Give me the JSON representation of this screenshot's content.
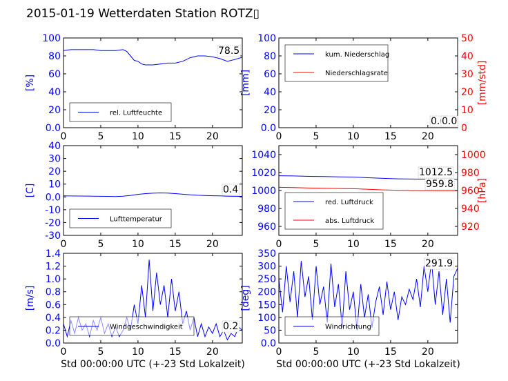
{
  "title": "2015-01-19 Wetterdaten Station ROTZ▯",
  "chart_data": [
    {
      "type": "line",
      "id": "humidity",
      "xlim": [
        0,
        24
      ],
      "xticks": [
        0,
        5,
        10,
        15,
        20
      ],
      "ylim": [
        0,
        100
      ],
      "yticks": [
        0,
        20,
        40,
        60,
        80,
        100
      ],
      "ylabel": "[%]",
      "xlabel": "",
      "legend": "lower-left",
      "series": [
        {
          "name": "rel. Luftfeuchte",
          "color": "#0000ff",
          "x": [
            0,
            1,
            2,
            3,
            4,
            5,
            6,
            7,
            8,
            8.5,
            9,
            9.5,
            10,
            10.5,
            11,
            12,
            13,
            14,
            15,
            16,
            17,
            18,
            19,
            20,
            21,
            22,
            23,
            24
          ],
          "y": [
            86,
            87,
            87,
            87,
            87,
            86,
            86,
            86,
            87,
            85,
            80,
            75,
            74,
            71,
            70,
            70,
            71,
            72,
            72,
            74,
            78,
            80,
            80,
            79,
            77,
            74,
            76,
            78.5
          ]
        }
      ],
      "value_labels": [
        {
          "text": "78.5",
          "color": "#000000"
        }
      ]
    },
    {
      "type": "line",
      "id": "precipitation",
      "xlim": [
        0,
        24
      ],
      "xticks": [
        0,
        5,
        10,
        15,
        20
      ],
      "ylim": [
        0,
        100
      ],
      "yticks": [
        0,
        20,
        40,
        60,
        80,
        100
      ],
      "ylabel": "[mm]",
      "y2lim": [
        0,
        50
      ],
      "y2ticks": [
        0,
        10,
        20,
        30,
        40,
        50
      ],
      "y2label": "[mm/std]",
      "xlabel": "",
      "legend": "upper-left",
      "series": [
        {
          "name": "kum. Niederschlag",
          "color": "#0000ff",
          "axis": "left",
          "x": [
            0,
            24
          ],
          "y": [
            0,
            0
          ]
        },
        {
          "name": "Niederschlagsrate",
          "color": "#ff0000",
          "axis": "right",
          "x": [
            0,
            24
          ],
          "y": [
            0,
            0
          ]
        }
      ],
      "value_labels": [
        {
          "text": "0.0",
          "color": "#000000"
        },
        {
          "text": "0.0",
          "color": "#000000"
        }
      ]
    },
    {
      "type": "line",
      "id": "temperature",
      "xlim": [
        0,
        24
      ],
      "xticks": [
        0,
        5,
        10,
        15,
        20
      ],
      "ylim": [
        -30,
        40
      ],
      "yticks": [
        -30,
        -20,
        -10,
        0,
        10,
        20,
        30,
        40
      ],
      "ylabel": "[C]",
      "xlabel": "",
      "legend": "lower-left",
      "series": [
        {
          "name": "Lufttemperatur",
          "color": "#0000ff",
          "x": [
            0,
            2,
            4,
            6,
            7,
            8,
            9,
            10,
            11,
            12,
            13,
            14,
            15,
            16,
            17,
            18,
            19,
            20,
            21,
            22,
            23,
            24
          ],
          "y": [
            0.8,
            0.7,
            0.6,
            0.4,
            0.3,
            0.6,
            1.2,
            2.0,
            2.6,
            2.9,
            3.1,
            3.0,
            2.6,
            2.1,
            1.6,
            1.3,
            1.1,
            0.9,
            0.8,
            0.6,
            0.5,
            0.4
          ]
        }
      ],
      "value_labels": [
        {
          "text": "0.4",
          "color": "#000000"
        }
      ]
    },
    {
      "type": "line",
      "id": "pressure",
      "xlim": [
        0,
        24
      ],
      "xticks": [
        0,
        5,
        10,
        15,
        20
      ],
      "ylim": [
        950,
        1050
      ],
      "yticks": [
        960,
        980,
        1000,
        1020,
        1040
      ],
      "ylabel": "",
      "y2lim": [
        910,
        1010
      ],
      "y2ticks": [
        920,
        940,
        960,
        980,
        1000
      ],
      "y2label": "[hPa]",
      "xlabel": "",
      "legend": "lower-left",
      "series": [
        {
          "name": "red. Luftdruck",
          "color": "#0000ff",
          "axis": "left",
          "x": [
            0,
            2,
            4,
            6,
            8,
            10,
            12,
            14,
            16,
            18,
            20,
            22,
            24
          ],
          "y": [
            1016.5,
            1016.2,
            1015.8,
            1015.5,
            1015.2,
            1015.0,
            1014.2,
            1013.5,
            1013.0,
            1012.8,
            1012.6,
            1012.5,
            1012.5
          ]
        },
        {
          "name": "abs. Luftdruck",
          "color": "#ff0000",
          "axis": "right",
          "x": [
            0,
            2,
            4,
            6,
            8,
            10,
            12,
            14,
            16,
            18,
            20,
            22,
            24
          ],
          "y": [
            963.5,
            963.2,
            962.8,
            962.5,
            962.2,
            962.0,
            961.3,
            960.7,
            960.3,
            960.0,
            959.9,
            959.8,
            959.8
          ]
        }
      ],
      "value_labels": [
        {
          "text": "1012.5",
          "color": "#000000"
        },
        {
          "text": "959.8",
          "color": "#000000"
        }
      ]
    },
    {
      "type": "line",
      "id": "windspeed",
      "xlim": [
        0,
        24
      ],
      "xticks": [
        0,
        5,
        10,
        15,
        20
      ],
      "ylim": [
        0,
        1.4
      ],
      "yticks": [
        0.0,
        0.2,
        0.4,
        0.6,
        0.8,
        1.0,
        1.2,
        1.4
      ],
      "ylabel": "[m/s]",
      "xlabel": "Std 00:00:00 UTC (+-23 Std Lokalzeit)",
      "legend": "lower-left",
      "series": [
        {
          "name": "Windgeschwindigkeit",
          "color": "#0000ff",
          "x": [
            0,
            0.5,
            1,
            1.5,
            2,
            2.5,
            3,
            3.5,
            4,
            4.5,
            5,
            5.5,
            6,
            6.5,
            7,
            7.5,
            8,
            8.5,
            9,
            9.5,
            10,
            10.5,
            11,
            11.5,
            12,
            12.5,
            13,
            13.5,
            14,
            14.5,
            15,
            15.5,
            16,
            16.5,
            17,
            17.5,
            18,
            18.5,
            19,
            19.5,
            20,
            20.5,
            21,
            21.5,
            22,
            22.5,
            23,
            23.5,
            24
          ],
          "y": [
            0.3,
            0.1,
            0.35,
            0.15,
            0.4,
            0.2,
            0.3,
            0.1,
            0.35,
            0.2,
            0.4,
            0.15,
            0.3,
            0.1,
            0.25,
            0.1,
            0.2,
            0.4,
            0.2,
            0.6,
            0.3,
            0.9,
            0.4,
            1.3,
            0.5,
            1.1,
            0.6,
            0.9,
            0.4,
            1.0,
            0.5,
            0.8,
            0.3,
            0.5,
            0.2,
            0.4,
            0.1,
            0.3,
            0.1,
            0.25,
            0.15,
            0.3,
            0.1,
            0.2,
            0.05,
            0.15,
            0.1,
            0.25,
            0.2
          ]
        }
      ],
      "value_labels": [
        {
          "text": "0.2",
          "color": "#000000"
        }
      ]
    },
    {
      "type": "line",
      "id": "winddirection",
      "xlim": [
        0,
        24
      ],
      "xticks": [
        0,
        5,
        10,
        15,
        20
      ],
      "ylim": [
        0,
        350
      ],
      "yticks": [
        0,
        50,
        100,
        150,
        200,
        250,
        300,
        350
      ],
      "ylabel": "[deg]",
      "xlabel": "Std 00:00:00 UTC (+-23 Std Lokalzeit)",
      "legend": "lower-left",
      "series": [
        {
          "name": "Windrichtung",
          "color": "#0000ff",
          "x": [
            0,
            0.5,
            1,
            1.5,
            2,
            2.5,
            3,
            3.5,
            4,
            4.5,
            5,
            5.5,
            6,
            6.5,
            7,
            7.5,
            8,
            8.5,
            9,
            9.5,
            10,
            10.5,
            11,
            11.5,
            12,
            12.5,
            13,
            13.5,
            14,
            14.5,
            15,
            15.5,
            16,
            16.5,
            17,
            17.5,
            18,
            18.5,
            19,
            19.5,
            20,
            20.5,
            21,
            21.5,
            22,
            22.5,
            23,
            23.5,
            24
          ],
          "y": [
            250,
            120,
            300,
            160,
            280,
            100,
            320,
            180,
            260,
            90,
            300,
            150,
            220,
            80,
            310,
            140,
            230,
            60,
            280,
            130,
            200,
            50,
            230,
            100,
            190,
            60,
            160,
            220,
            110,
            240,
            130,
            200,
            90,
            180,
            150,
            210,
            170,
            250,
            140,
            300,
            200,
            320,
            150,
            280,
            110,
            250,
            80,
            260,
            291.9
          ]
        }
      ],
      "value_labels": [
        {
          "text": "291.9",
          "color": "#000000"
        }
      ]
    }
  ]
}
